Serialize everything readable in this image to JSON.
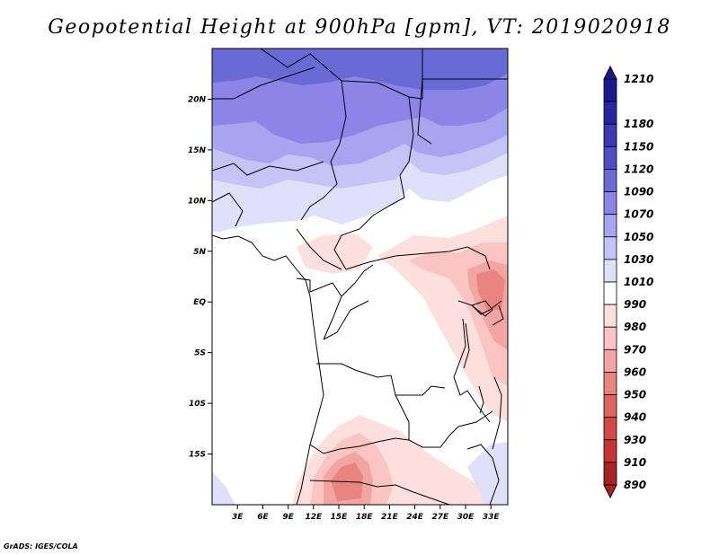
{
  "title": "Geopotential Height at 900hPa [gpm], VT: 2019020918",
  "credit": "GrADS: IGES/COLA",
  "map": {
    "lon_range": [
      0,
      35
    ],
    "lat_range": [
      -20,
      25
    ],
    "lat_ticks": [
      {
        "lat": 20,
        "label": "20N"
      },
      {
        "lat": 15,
        "label": "15N"
      },
      {
        "lat": 10,
        "label": "10N"
      },
      {
        "lat": 5,
        "label": "5N"
      },
      {
        "lat": 0,
        "label": "EQ"
      },
      {
        "lat": -5,
        "label": "5S"
      },
      {
        "lat": -10,
        "label": "10S"
      },
      {
        "lat": -15,
        "label": "15S"
      }
    ],
    "lon_ticks": [
      {
        "lon": 3,
        "label": "3E"
      },
      {
        "lon": 6,
        "label": "6E"
      },
      {
        "lon": 9,
        "label": "9E"
      },
      {
        "lon": 12,
        "label": "12E"
      },
      {
        "lon": 15,
        "label": "15E"
      },
      {
        "lon": 18,
        "label": "18E"
      },
      {
        "lon": 21,
        "label": "21E"
      },
      {
        "lon": 24,
        "label": "24E"
      },
      {
        "lon": 27,
        "label": "27E"
      },
      {
        "lon": 30,
        "label": "30E"
      },
      {
        "lon": 33,
        "label": "33E"
      }
    ]
  },
  "colorbar": {
    "levels": [
      {
        "label": "1210",
        "color": "#1a1a8c"
      },
      {
        "label": "1180",
        "color": "#2626a0"
      },
      {
        "label": "1150",
        "color": "#3a3ab4"
      },
      {
        "label": "1120",
        "color": "#4f4fc4"
      },
      {
        "label": "1090",
        "color": "#6a6ad6"
      },
      {
        "label": "1070",
        "color": "#8a85e6"
      },
      {
        "label": "1050",
        "color": "#a8a4f0"
      },
      {
        "label": "1030",
        "color": "#c6c4f6"
      },
      {
        "label": "1010",
        "color": "#e0e0fb"
      },
      {
        "label": "990",
        "color": "#ffffff"
      },
      {
        "label": "980",
        "color": "#fde0de"
      },
      {
        "label": "970",
        "color": "#f9c4c1"
      },
      {
        "label": "960",
        "color": "#f2a5a2"
      },
      {
        "label": "950",
        "color": "#ea8481"
      },
      {
        "label": "940",
        "color": "#e06462"
      },
      {
        "label": "930",
        "color": "#d44846"
      },
      {
        "label": "910",
        "color": "#c33434"
      },
      {
        "label": "890",
        "color": "#a82222"
      }
    ]
  }
}
